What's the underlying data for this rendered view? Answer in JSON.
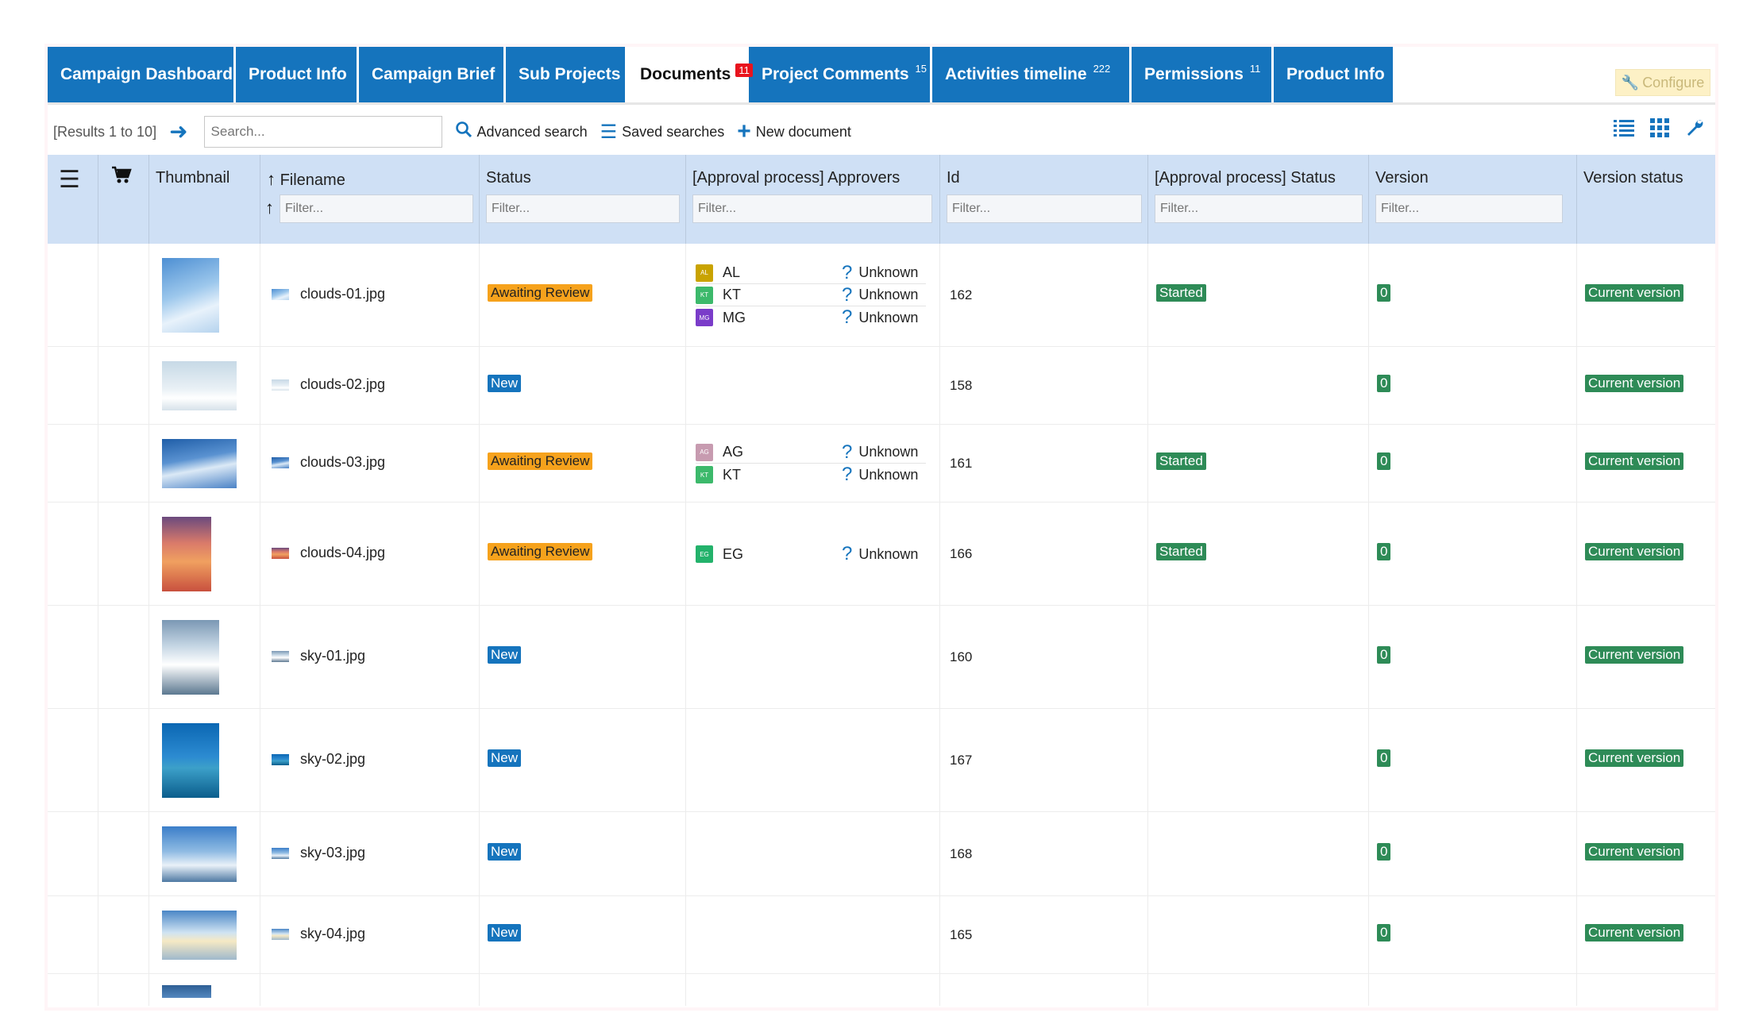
{
  "tabs": [
    {
      "label": "Campaign Dashboard",
      "badge": "",
      "active": false
    },
    {
      "label": "Product Info",
      "badge": "",
      "active": false
    },
    {
      "label": "Campaign Brief",
      "badge": "",
      "active": false
    },
    {
      "label": "Sub Projects",
      "badge": "",
      "active": false
    },
    {
      "label": "Documents",
      "badge": "11",
      "active": true
    },
    {
      "label": "Project Comments",
      "badge": "15",
      "active": false
    },
    {
      "label": "Activities timeline",
      "badge": "222",
      "active": false
    },
    {
      "label": "Permissions",
      "badge": "11",
      "active": false
    },
    {
      "label": "Product Info",
      "badge": "",
      "active": false
    }
  ],
  "configure_label": "Configure",
  "toolbar": {
    "results": "[Results 1 to 10]",
    "search_placeholder": "Search...",
    "advanced_search": "Advanced search",
    "saved_searches": "Saved searches",
    "new_document": "New document"
  },
  "columns": {
    "thumbnail": "Thumbnail",
    "filename": "Filename",
    "status": "Status",
    "approvers": "[Approval process] Approvers",
    "id": "Id",
    "approval_status": "[Approval process] Status",
    "version": "Version",
    "version_status": "Version status",
    "filter_placeholder": "Filter..."
  },
  "rows": [
    {
      "filename": "clouds-01.jpg",
      "status": "Awaiting Review",
      "status_kind": "await",
      "approvers": [
        {
          "initials": "AL",
          "name": "AL",
          "color": "#c9a300",
          "state": "Unknown"
        },
        {
          "initials": "KT",
          "name": "KT",
          "color": "#3cb96b",
          "state": "Unknown"
        },
        {
          "initials": "MG",
          "name": "MG",
          "color": "#7a3cc9",
          "state": "Unknown"
        }
      ],
      "id": "162",
      "approval_status": "Started",
      "version": "0",
      "version_status": "Current version",
      "thumb": "tall-sky"
    },
    {
      "filename": "clouds-02.jpg",
      "status": "New",
      "status_kind": "new",
      "approvers": [],
      "id": "158",
      "approval_status": "",
      "version": "0",
      "version_status": "Current version",
      "thumb": "wide-pale"
    },
    {
      "filename": "clouds-03.jpg",
      "status": "Awaiting Review",
      "status_kind": "await",
      "approvers": [
        {
          "initials": "AG",
          "name": "AG",
          "color": "#c79bb0",
          "state": "Unknown"
        },
        {
          "initials": "KT",
          "name": "KT",
          "color": "#3cb96b",
          "state": "Unknown"
        }
      ],
      "id": "161",
      "approval_status": "Started",
      "version": "0",
      "version_status": "Current version",
      "thumb": "wide-blue"
    },
    {
      "filename": "clouds-04.jpg",
      "status": "Awaiting Review",
      "status_kind": "await",
      "approvers": [
        {
          "initials": "EG",
          "name": "EG",
          "color": "#23b26b",
          "state": "Unknown"
        }
      ],
      "id": "166",
      "approval_status": "Started",
      "version": "0",
      "version_status": "Current version",
      "thumb": "tall-sunset"
    },
    {
      "filename": "sky-01.jpg",
      "status": "New",
      "status_kind": "new",
      "approvers": [],
      "id": "160",
      "approval_status": "",
      "version": "0",
      "version_status": "Current version",
      "thumb": "tall-cloud"
    },
    {
      "filename": "sky-02.jpg",
      "status": "New",
      "status_kind": "new",
      "approvers": [],
      "id": "167",
      "approval_status": "",
      "version": "0",
      "version_status": "Current version",
      "thumb": "tall-ocean"
    },
    {
      "filename": "sky-03.jpg",
      "status": "New",
      "status_kind": "new",
      "approvers": [],
      "id": "168",
      "approval_status": "",
      "version": "0",
      "version_status": "Current version",
      "thumb": "wide-horizon"
    },
    {
      "filename": "sky-04.jpg",
      "status": "New",
      "status_kind": "new",
      "approvers": [],
      "id": "165",
      "approval_status": "",
      "version": "0",
      "version_status": "Current version",
      "thumb": "wide-sunrise"
    }
  ],
  "icons": {
    "menu": "hamburger-icon",
    "cart": "cart-icon",
    "list_view": "list-view-icon",
    "grid_view": "grid-view-icon",
    "settings": "wrench-icon",
    "unknown": "question-icon"
  },
  "colors": {
    "accent": "#1574bd",
    "awaiting": "#f6a21c",
    "green": "#2e8b57",
    "header_bg": "#cfe0f5"
  }
}
